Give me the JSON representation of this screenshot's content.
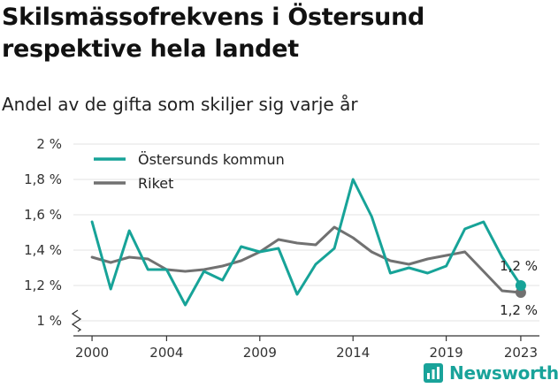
{
  "title": "Skilsmässofrekvens i Östersund respektive hela landet",
  "subtitle": "Andel av de gifta som skiljer sig varje år",
  "brand": {
    "name": "Newsworthy",
    "color": "#19a39a"
  },
  "chart_data": {
    "type": "line",
    "title": "Skilsmässofrekvens i Östersund respektive hela landet",
    "subtitle": "Andel av de gifta som skiljer sig varje år",
    "xlabel": "",
    "ylabel": "",
    "x": [
      2000,
      2001,
      2002,
      2003,
      2004,
      2005,
      2006,
      2007,
      2008,
      2009,
      2010,
      2011,
      2012,
      2013,
      2014,
      2015,
      2016,
      2017,
      2018,
      2019,
      2020,
      2021,
      2022,
      2023
    ],
    "xlim": [
      1999,
      2024
    ],
    "ylim": [
      1.0,
      2.0
    ],
    "y_axis_break": true,
    "x_ticks": [
      2000,
      2004,
      2009,
      2014,
      2019,
      2023
    ],
    "x_tick_labels": [
      "2000",
      "2004",
      "2009",
      "2014",
      "2019",
      "2023"
    ],
    "y_ticks": [
      1.0,
      1.2,
      1.4,
      1.6,
      1.8,
      2.0
    ],
    "y_tick_labels": [
      "1 %",
      "1,2 %",
      "1,4 %",
      "1,6 %",
      "1,8 %",
      "2 %"
    ],
    "grid": "horizontal",
    "legend_position": "top-left",
    "series": [
      {
        "name": "Östersunds kommun",
        "color": "#17a398",
        "values": [
          1.56,
          1.18,
          1.51,
          1.29,
          1.29,
          1.09,
          1.28,
          1.23,
          1.42,
          1.39,
          1.41,
          1.15,
          1.32,
          1.41,
          1.8,
          1.59,
          1.27,
          1.3,
          1.27,
          1.31,
          1.52,
          1.56,
          1.36,
          1.2
        ],
        "end_label": "1,2 %"
      },
      {
        "name": "Riket",
        "color": "#717171",
        "values": [
          1.36,
          1.33,
          1.36,
          1.35,
          1.29,
          1.28,
          1.29,
          1.31,
          1.34,
          1.39,
          1.46,
          1.44,
          1.43,
          1.53,
          1.47,
          1.39,
          1.34,
          1.32,
          1.35,
          1.37,
          1.39,
          1.28,
          1.17,
          1.16
        ],
        "end_label": "1,2 %"
      }
    ]
  }
}
